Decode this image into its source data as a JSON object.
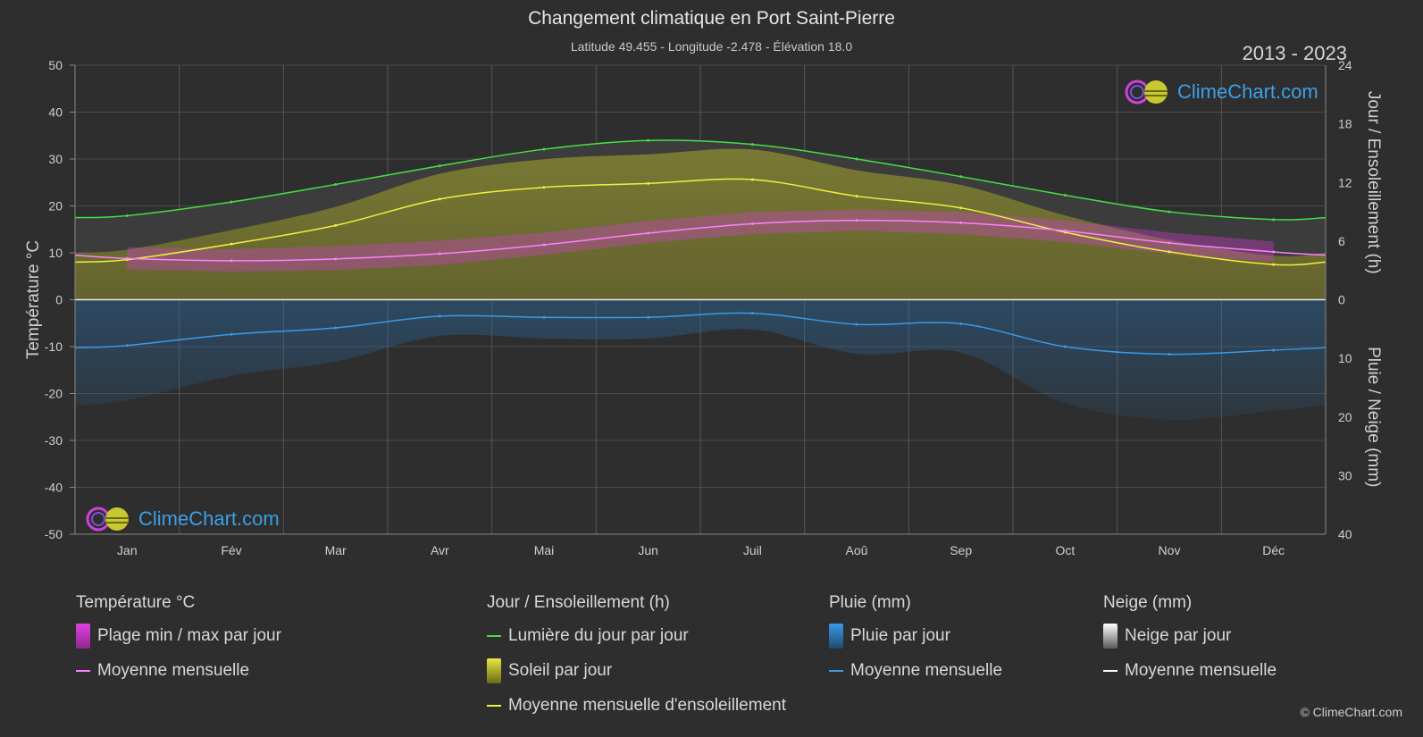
{
  "header": {
    "title": "Changement climatique en Port Saint-Pierre",
    "subtitle": "Latitude 49.455 - Longitude -2.478 - Élévation 18.0",
    "years": "2013 - 2023"
  },
  "watermark": "ClimeChart.com",
  "copyright": "© ClimeChart.com",
  "colors": {
    "background": "#2e2e2e",
    "daylight": "#44e044",
    "sunshine_fill": "#b8b82c",
    "sunshine_mean": "#f0f040",
    "temp_range": "#d63cd6",
    "temp_mean": "#ff80ff",
    "rain": "#2a6ea8",
    "rain_mean": "#3a9ae8",
    "snow_mean": "#ffffff"
  },
  "chart_data": {
    "type": "line",
    "x_label_months": [
      "Jan",
      "Fév",
      "Mar",
      "Avr",
      "Mai",
      "Jun",
      "Juil",
      "Aoû",
      "Sep",
      "Oct",
      "Nov",
      "Déc"
    ],
    "y_left_label": "Température °C",
    "y_left_range": [
      -50,
      50
    ],
    "y_left_ticks": [
      50,
      40,
      30,
      20,
      10,
      0,
      -10,
      -20,
      -30,
      -40,
      -50
    ],
    "y_right_top_label": "Jour / Ensoleillement (h)",
    "y_right_top_range": [
      0,
      24
    ],
    "y_right_top_ticks": [
      24,
      18,
      12,
      6,
      0
    ],
    "y_right_bottom_label": "Pluie / Neige (mm)",
    "y_right_bottom_range": [
      0,
      40
    ],
    "y_right_bottom_ticks": [
      0,
      10,
      20,
      30,
      40
    ],
    "series": [
      {
        "name": "Lumière du jour par jour",
        "unit": "h",
        "values": [
          8.6,
          10.0,
          11.8,
          13.7,
          15.4,
          16.3,
          15.9,
          14.4,
          12.6,
          10.7,
          9.0,
          8.2
        ]
      },
      {
        "name": "Moyenne mensuelle d'ensoleillement",
        "unit": "h",
        "values": [
          4.1,
          5.7,
          7.6,
          10.3,
          11.5,
          11.9,
          12.3,
          10.6,
          9.4,
          6.9,
          4.9,
          3.6
        ]
      },
      {
        "name": "Moyenne mensuelle (température)",
        "unit": "°C",
        "values": [
          8.8,
          8.3,
          8.7,
          9.8,
          11.7,
          14.2,
          16.2,
          16.9,
          16.4,
          14.7,
          12.1,
          10.2
        ]
      },
      {
        "name": "Plage min",
        "unit": "°C",
        "values": [
          6.5,
          6.0,
          6.3,
          7.4,
          9.6,
          12.1,
          14.0,
          14.7,
          14.0,
          12.3,
          9.8,
          8.0
        ]
      },
      {
        "name": "Plage max",
        "unit": "°C",
        "values": [
          11.2,
          10.8,
          11.4,
          12.6,
          14.3,
          16.8,
          18.7,
          19.2,
          18.7,
          16.9,
          14.3,
          12.4
        ]
      },
      {
        "name": "Moyenne mensuelle (pluie)",
        "unit": "mm",
        "values": [
          7.8,
          5.9,
          4.8,
          2.8,
          3.0,
          3.0,
          2.3,
          4.2,
          4.1,
          8.0,
          9.3,
          8.6
        ]
      },
      {
        "name": "Moyenne mensuelle (neige)",
        "unit": "mm",
        "values": [
          0,
          0,
          0,
          0,
          0,
          0,
          0,
          0,
          0,
          0,
          0,
          0
        ]
      }
    ]
  },
  "legend": {
    "temperature": {
      "title": "Température °C",
      "items": [
        "Plage min / max par jour",
        "Moyenne mensuelle"
      ]
    },
    "sun": {
      "title": "Jour / Ensoleillement (h)",
      "items": [
        "Lumière du jour par jour",
        "Soleil par jour",
        "Moyenne mensuelle d'ensoleillement"
      ]
    },
    "rain": {
      "title": "Pluie (mm)",
      "items": [
        "Pluie par jour",
        "Moyenne mensuelle"
      ]
    },
    "snow": {
      "title": "Neige (mm)",
      "items": [
        "Neige par jour",
        "Moyenne mensuelle"
      ]
    }
  }
}
